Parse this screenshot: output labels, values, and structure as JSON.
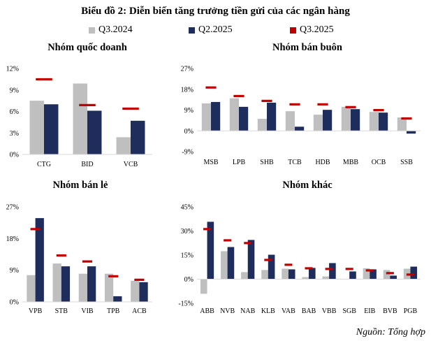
{
  "title": "Biểu đồ 2: Diễn biến tăng trưởng tiền gửi của các ngân hàng",
  "legend": [
    {
      "label": "Q3.2024",
      "color": "#bfbfbf"
    },
    {
      "label": "Q2.2025",
      "color": "#1f2d5c"
    },
    {
      "label": "Q3.2025",
      "color": "#c00000"
    }
  ],
  "source": "Nguồn: Tổng hợp",
  "chart_data": [
    {
      "type": "bar",
      "title": "Nhóm quốc doanh",
      "categories": [
        "CTG",
        "BID",
        "VCB"
      ],
      "ylim": [
        0,
        12
      ],
      "yticks": [
        0,
        3,
        6,
        9,
        12
      ],
      "tick_format": "percent",
      "series": [
        {
          "name": "Q3.2024",
          "kind": "bar",
          "values": [
            7.5,
            9.9,
            2.4
          ]
        },
        {
          "name": "Q2.2025",
          "kind": "bar",
          "values": [
            7.0,
            6.1,
            4.7
          ]
        },
        {
          "name": "Q3.2025",
          "kind": "marker",
          "values": [
            10.5,
            6.9,
            6.4
          ]
        }
      ]
    },
    {
      "type": "bar",
      "title": "Nhóm bán buôn",
      "categories": [
        "MSB",
        "LPB",
        "SHB",
        "TCB",
        "HDB",
        "MBB",
        "OCB",
        "SSB"
      ],
      "ylim": [
        -9,
        27
      ],
      "yticks": [
        -9,
        0,
        9,
        18,
        27
      ],
      "tick_format": "percent",
      "series": [
        {
          "name": "Q3.2024",
          "kind": "bar",
          "values": [
            11.9,
            14.1,
            5.2,
            8.5,
            7.0,
            10.4,
            8.2,
            5.8
          ]
        },
        {
          "name": "Q2.2025",
          "kind": "bar",
          "values": [
            12.5,
            10.4,
            12.2,
            1.8,
            9.1,
            9.4,
            7.9,
            -1.2
          ]
        },
        {
          "name": "Q3.2025",
          "kind": "marker",
          "values": [
            18.8,
            15.1,
            13.0,
            11.5,
            11.5,
            10.3,
            9.0,
            5.4
          ]
        }
      ]
    },
    {
      "type": "bar",
      "title": "Nhóm bán lẻ",
      "categories": [
        "VPB",
        "STB",
        "VIB",
        "TPB",
        "ACB"
      ],
      "ylim": [
        0,
        27
      ],
      "yticks": [
        0,
        9,
        18,
        27
      ],
      "tick_format": "percent",
      "series": [
        {
          "name": "Q3.2024",
          "kind": "bar",
          "values": [
            7.6,
            10.9,
            8.0,
            8.0,
            6.0
          ]
        },
        {
          "name": "Q2.2025",
          "kind": "bar",
          "values": [
            23.8,
            10.1,
            10.1,
            1.6,
            5.6
          ]
        },
        {
          "name": "Q3.2025",
          "kind": "marker",
          "values": [
            20.7,
            13.2,
            11.5,
            7.3,
            6.3
          ]
        }
      ]
    },
    {
      "type": "bar",
      "title": "Nhóm khác",
      "categories": [
        "ABB",
        "NVB",
        "NAB",
        "KLB",
        "VAB",
        "BAB",
        "VBB",
        "SGB",
        "EIB",
        "BVB",
        "PGB"
      ],
      "ylim": [
        -15,
        45
      ],
      "yticks": [
        -15,
        0,
        15,
        30,
        45
      ],
      "tick_format": "percent",
      "series": [
        {
          "name": "Q3.2024",
          "kind": "bar",
          "values": [
            -9.1,
            17.4,
            4.4,
            5.7,
            6.5,
            1.3,
            1.7,
            0,
            6.8,
            5.7,
            6.5
          ]
        },
        {
          "name": "Q2.2025",
          "kind": "bar",
          "values": [
            35.7,
            20.0,
            24.4,
            15.2,
            6.1,
            7.0,
            10.0,
            4.8,
            6.1,
            2.2,
            7.8
          ]
        },
        {
          "name": "Q3.2025",
          "kind": "marker",
          "values": [
            31.2,
            24.2,
            22.5,
            12.0,
            9.0,
            6.8,
            6.4,
            6.4,
            5.5,
            3.8,
            2.9
          ]
        }
      ]
    }
  ]
}
